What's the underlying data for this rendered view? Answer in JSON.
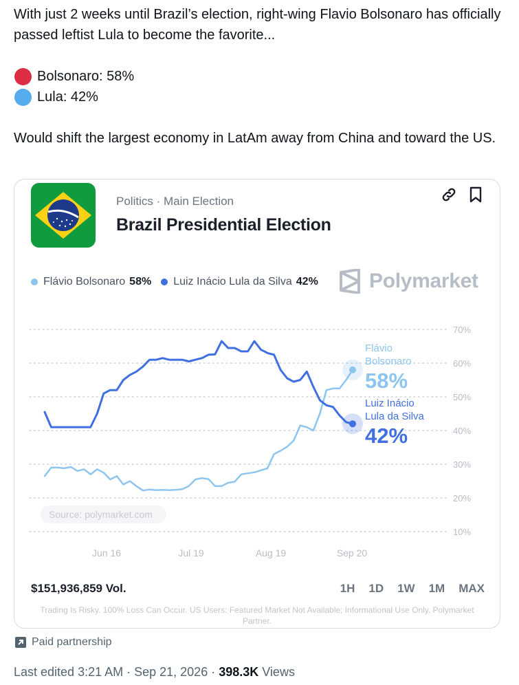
{
  "tweet": {
    "line1": "With just 2 weeks until Brazil’s election, right-wing Flavio Bolsonaro has officially passed leftist Lula to become the favorite...",
    "bolsonaro_line": "Bolsonaro: 58%",
    "lula_line": "Lula: 42%",
    "line3": "Would shift the largest economy in LatAm away from China and toward the US.",
    "colors": {
      "red_circle": "#dd2e44",
      "blue_circle": "#55acee"
    }
  },
  "card": {
    "category": "Politics · Main Election",
    "title": "Brazil Presidential Election",
    "brand": "Polymarket",
    "legend": [
      {
        "name": "Flávio Bolsonaro",
        "value": "58%",
        "color": "#8ec5ef"
      },
      {
        "name": "Luiz Inácio Lula da Silva",
        "value": "42%",
        "color": "#3f6fe0"
      }
    ],
    "source": "Source: polymarket.com",
    "volume": "$151,936,859 Vol.",
    "ranges": [
      "1H",
      "1D",
      "1W",
      "1M",
      "MAX"
    ],
    "disclaimer": "Trading Is Risky. 100% Loss Can Occur. US Users: Featured Market Not Available; Informational Use Only. Polymarket Partner."
  },
  "chart_data": {
    "type": "line",
    "x_ticks": [
      "Jun 16",
      "Jul 19",
      "Aug 19",
      "Sep 20"
    ],
    "y_ticks": [
      "70%",
      "60%",
      "50%",
      "40%",
      "30%",
      "20%",
      "10%"
    ],
    "ylim": [
      10,
      70
    ],
    "grid": true,
    "series": [
      {
        "name": "Flávio Bolsonaro",
        "label_lines": [
          "Flávio",
          "Bolsonaro"
        ],
        "end_label": "58%",
        "color": "#8ec5ef",
        "values": [
          26.5,
          29,
          29,
          28.8,
          29.2,
          28,
          28.5,
          27,
          28.5,
          27.5,
          25.5,
          26.5,
          24,
          25,
          23.5,
          22.2,
          22.5,
          22.3,
          22.4,
          22.3,
          22.4,
          22.6,
          23.5,
          25.5,
          25.9,
          25.6,
          23.5,
          23.5,
          24.5,
          24.8,
          27,
          27.3,
          27.6,
          28.2,
          28.8,
          33,
          34,
          35.2,
          37,
          41.5,
          41,
          40,
          45,
          52,
          52.5,
          52.5,
          55,
          58
        ]
      },
      {
        "name": "Luiz Inácio Lula da Silva",
        "label_lines": [
          "Luiz Inácio",
          "Lula da Silva"
        ],
        "end_label": "42%",
        "color": "#3f6fe0",
        "values": [
          45.5,
          41,
          41,
          41,
          41,
          41,
          41,
          41,
          45,
          51,
          52,
          52,
          55,
          56.5,
          57.5,
          59,
          61,
          61,
          61.5,
          61,
          61,
          61,
          60.5,
          61,
          61.5,
          62.5,
          62.6,
          66.5,
          64.5,
          64.5,
          63.5,
          63.5,
          66.5,
          64,
          63,
          62.5,
          58,
          55.5,
          54.5,
          55,
          57.5,
          53,
          49,
          47.5,
          47,
          44.5,
          42.5,
          42
        ]
      }
    ]
  },
  "footer": {
    "paid": "Paid partnership",
    "edited": "Last edited 3:21 AM · Sep 21, 2026 · ",
    "views_count": "398.3K",
    "views_label": " Views"
  }
}
